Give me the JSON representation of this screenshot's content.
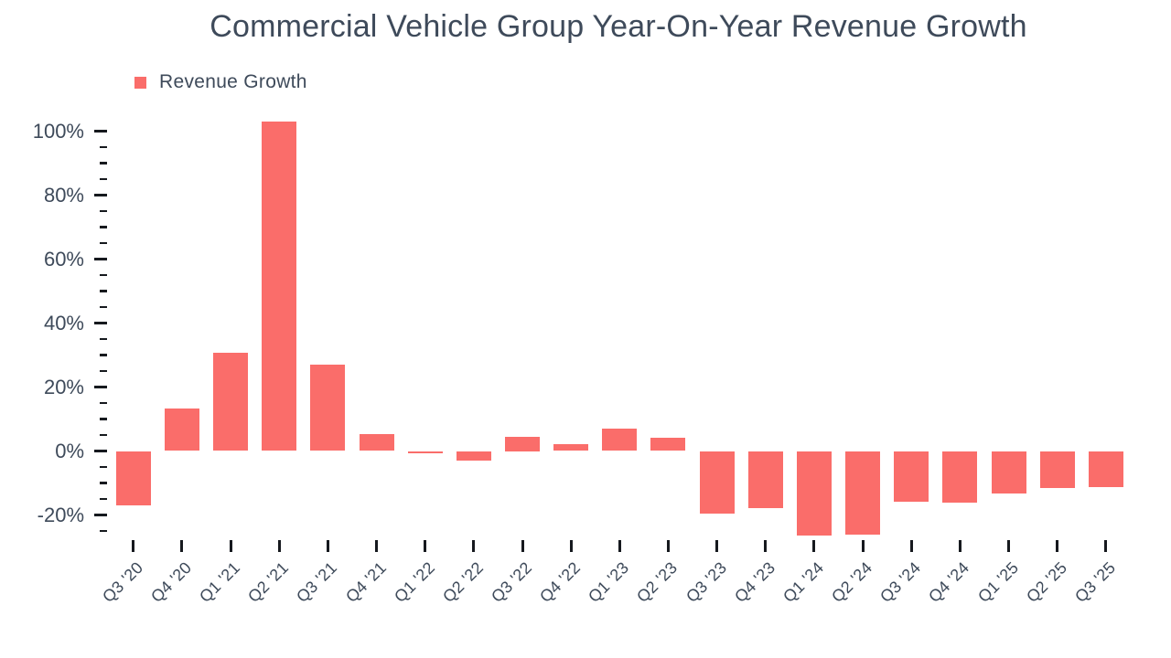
{
  "colors": {
    "background": "#ffffff",
    "bar": "#fa6d6a",
    "text": "#3e4a5a",
    "tick": "#16191e"
  },
  "legend": {
    "label": "Revenue Growth"
  },
  "chart_data": {
    "type": "bar",
    "title": "Commercial Vehicle Group Year-On-Year Revenue Growth",
    "categories": [
      "Q3 '20",
      "Q4 '20",
      "Q1 '21",
      "Q2 '21",
      "Q3 '21",
      "Q4 '21",
      "Q1 '22",
      "Q2 '22",
      "Q3 '22",
      "Q4 '22",
      "Q1 '23",
      "Q2 '23",
      "Q3 '23",
      "Q4 '23",
      "Q1 '24",
      "Q2 '24",
      "Q3 '24",
      "Q4 '24",
      "Q1 '25",
      "Q2 '25",
      "Q3 '25"
    ],
    "series": [
      {
        "name": "Revenue Growth",
        "values": [
          -16.9,
          13.4,
          30.7,
          102.9,
          27.1,
          5.4,
          -0.6,
          -3.0,
          4.5,
          2.2,
          6.9,
          4.1,
          -19.5,
          -17.8,
          -26.4,
          -26.2,
          -15.8,
          -16.2,
          -13.3,
          -11.6,
          -11.4
        ]
      }
    ],
    "value_unit": "%",
    "xlabel": "",
    "ylabel": "",
    "ytick_labels": [
      "100%",
      "80%",
      "60%",
      "40%",
      "20%",
      "0%",
      "-20%"
    ],
    "ytick_values": [
      100,
      80,
      60,
      40,
      20,
      0,
      -20
    ],
    "minor_ytick_step": 5,
    "ylim": [
      -27,
      104
    ],
    "grid": false,
    "legend_position": "top-left"
  }
}
